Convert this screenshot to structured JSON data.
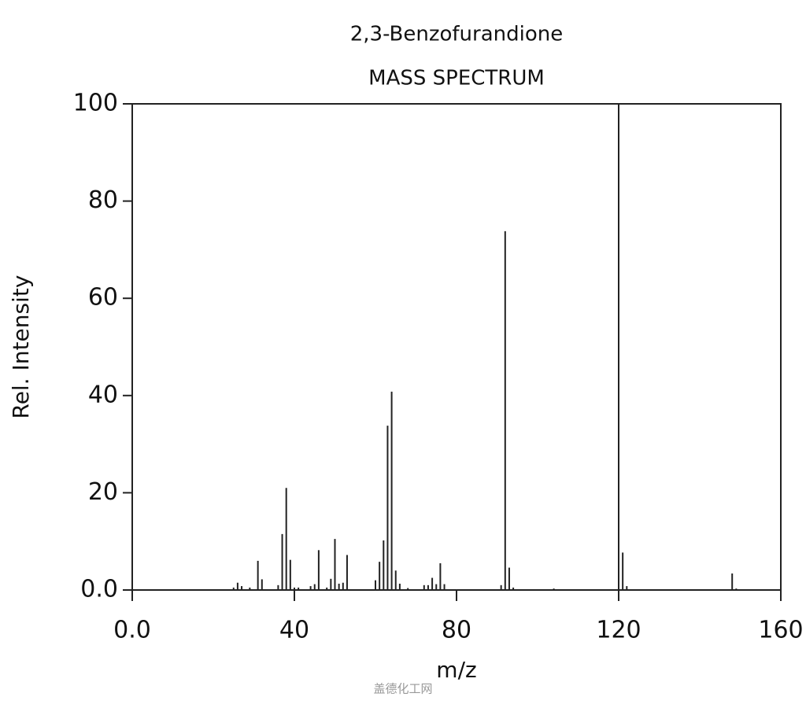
{
  "chart_data": {
    "type": "bar",
    "title": "2,3-Benzofurandione",
    "subtitle": "MASS SPECTRUM",
    "x_label": "m/z",
    "y_label": "Rel. Intensity",
    "watermark": "盖德化工网",
    "color": "#222222",
    "x": [
      25,
      26,
      27,
      29,
      31,
      32,
      36,
      37,
      38,
      39,
      40,
      41,
      44,
      45,
      46,
      48,
      49,
      50,
      51,
      52,
      53,
      60,
      61,
      62,
      63,
      64,
      65,
      66,
      68,
      72,
      73,
      74,
      75,
      76,
      77,
      91,
      92,
      93,
      94,
      104,
      120,
      121,
      122,
      148,
      149
    ],
    "values": [
      0.5,
      1.5,
      0.8,
      0.5,
      6,
      2.2,
      1,
      11.5,
      21,
      6.2,
      0.5,
      0.5,
      0.8,
      1.2,
      8.2,
      0.5,
      2.3,
      10.5,
      1.3,
      1.5,
      7.2,
      2,
      5.8,
      10.2,
      33.8,
      40.8,
      4,
      1.3,
      0.4,
      1,
      1,
      2.5,
      1.2,
      5.5,
      1.2,
      1,
      73.8,
      4.6,
      0.5,
      0.3,
      100,
      7.7,
      0.8,
      3.4,
      0.3
    ],
    "xlim": [
      0,
      160
    ],
    "ylim": [
      0,
      100
    ],
    "xticks": [
      {
        "value": 0,
        "label": "0.0"
      },
      40,
      80,
      120,
      160
    ],
    "yticks": [
      {
        "value": 0,
        "label": "0.0"
      },
      20,
      40,
      60,
      80,
      100
    ]
  }
}
